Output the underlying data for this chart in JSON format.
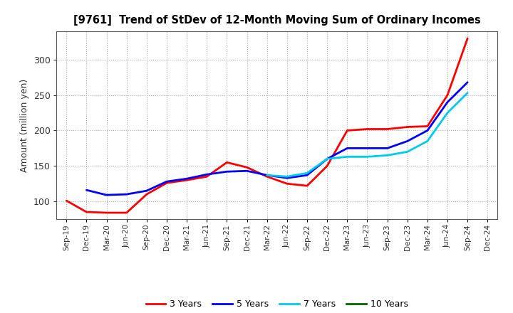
{
  "title": "[9761]  Trend of StDev of 12-Month Moving Sum of Ordinary Incomes",
  "ylabel": "Amount (million yen)",
  "background_color": "#ffffff",
  "grid_color": "#aaaaaa",
  "x_labels": [
    "Sep-19",
    "Dec-19",
    "Mar-20",
    "Jun-20",
    "Sep-20",
    "Dec-20",
    "Mar-21",
    "Jun-21",
    "Sep-21",
    "Dec-21",
    "Mar-22",
    "Jun-22",
    "Sep-22",
    "Dec-22",
    "Mar-23",
    "Jun-23",
    "Sep-23",
    "Dec-23",
    "Mar-24",
    "Jun-24",
    "Sep-24",
    "Dec-24"
  ],
  "series": {
    "3 Years": {
      "color": "#ff0000",
      "data": [
        101,
        85,
        84,
        84,
        110,
        126,
        130,
        135,
        155,
        148,
        135,
        125,
        122,
        150,
        200,
        202,
        202,
        205,
        206,
        250,
        330,
        null
      ]
    },
    "5 Years": {
      "color": "#0000ff",
      "data": [
        null,
        116,
        109,
        110,
        115,
        128,
        132,
        138,
        142,
        143,
        137,
        133,
        137,
        160,
        175,
        175,
        175,
        185,
        200,
        240,
        268,
        null
      ]
    },
    "7 Years": {
      "color": "#00ccee",
      "data": [
        null,
        null,
        null,
        null,
        null,
        null,
        null,
        null,
        null,
        null,
        137,
        135,
        140,
        160,
        163,
        163,
        165,
        170,
        185,
        225,
        253,
        null
      ]
    },
    "10 Years": {
      "color": "#006600",
      "data": [
        null,
        null,
        null,
        null,
        null,
        null,
        null,
        null,
        null,
        null,
        null,
        null,
        null,
        null,
        null,
        null,
        null,
        null,
        null,
        null,
        null,
        null
      ]
    }
  },
  "ylim": [
    75,
    340
  ],
  "yticks": [
    100,
    150,
    200,
    250,
    300
  ],
  "legend_order": [
    "3 Years",
    "5 Years",
    "7 Years",
    "10 Years"
  ],
  "legend_colors": [
    "#ff0000",
    "#0000ff",
    "#00ccee",
    "#006600"
  ]
}
